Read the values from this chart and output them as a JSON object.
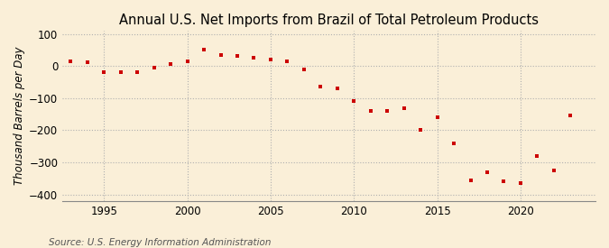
{
  "title": "Annual U.S. Net Imports from Brazil of Total Petroleum Products",
  "ylabel": "Thousand Barrels per Day",
  "source": "Source: U.S. Energy Information Administration",
  "background_color": "#faefd8",
  "marker_color": "#cc0000",
  "years": [
    1993,
    1994,
    1995,
    1996,
    1997,
    1998,
    1999,
    2000,
    2001,
    2002,
    2003,
    2004,
    2005,
    2006,
    2007,
    2008,
    2009,
    2010,
    2011,
    2012,
    2013,
    2014,
    2015,
    2016,
    2017,
    2018,
    2019,
    2020,
    2021,
    2022,
    2023
  ],
  "values": [
    15,
    12,
    -18,
    -20,
    -18,
    -5,
    5,
    15,
    50,
    35,
    30,
    25,
    20,
    15,
    -10,
    -65,
    -70,
    -110,
    -140,
    -140,
    -130,
    -200,
    -160,
    -240,
    -355,
    -330,
    -360,
    -365,
    -280,
    -325,
    -155
  ],
  "xlim": [
    1992.5,
    2024.5
  ],
  "ylim": [
    -420,
    110
  ],
  "yticks": [
    -400,
    -300,
    -200,
    -100,
    0,
    100
  ],
  "xticks": [
    1995,
    2000,
    2005,
    2010,
    2015,
    2020
  ],
  "grid_color": "#b0b0b0",
  "title_fontsize": 10.5,
  "label_fontsize": 8.5,
  "tick_fontsize": 8.5,
  "source_fontsize": 7.5
}
